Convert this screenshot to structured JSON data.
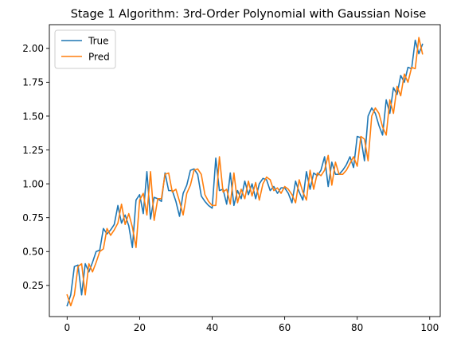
{
  "chart_data": {
    "type": "line",
    "title": "Stage 1 Algorithm: 3rd-Order Polynomial with Gaussian Noise",
    "xlabel": "",
    "ylabel": "",
    "xlim": [
      -4.9,
      102.9
    ],
    "ylim": [
      0.02,
      2.175
    ],
    "xticks": [
      0,
      20,
      40,
      60,
      80,
      100
    ],
    "yticks": [
      0.25,
      0.5,
      0.75,
      1.0,
      1.25,
      1.5,
      1.75,
      2.0
    ],
    "xtick_labels": [
      "0",
      "20",
      "40",
      "60",
      "80",
      "100"
    ],
    "ytick_labels": [
      "0.25",
      "0.50",
      "0.75",
      "1.00",
      "1.25",
      "1.50",
      "1.75",
      "2.00"
    ],
    "grid": false,
    "legend_position": "top-left",
    "x": [
      0,
      1,
      2,
      3,
      4,
      5,
      6,
      7,
      8,
      9,
      10,
      11,
      12,
      13,
      14,
      15,
      16,
      17,
      18,
      19,
      20,
      21,
      22,
      23,
      24,
      25,
      26,
      27,
      28,
      29,
      30,
      31,
      32,
      33,
      34,
      35,
      36,
      37,
      38,
      39,
      40,
      41,
      42,
      43,
      44,
      45,
      46,
      47,
      48,
      49,
      50,
      51,
      52,
      53,
      54,
      55,
      56,
      57,
      58,
      59,
      60,
      61,
      62,
      63,
      64,
      65,
      66,
      67,
      68,
      69,
      70,
      71,
      72,
      73,
      74,
      75,
      76,
      77,
      78,
      79,
      80,
      81,
      82,
      83,
      84,
      85,
      86,
      87,
      88,
      89,
      90,
      91,
      92,
      93,
      94,
      95,
      96,
      97,
      98
    ],
    "series": [
      {
        "name": "True",
        "color": "#1f77b4",
        "values": [
          0.1,
          0.18,
          0.39,
          0.4,
          0.18,
          0.41,
          0.35,
          0.42,
          0.5,
          0.51,
          0.67,
          0.63,
          0.66,
          0.7,
          0.84,
          0.71,
          0.77,
          0.69,
          0.53,
          0.88,
          0.92,
          0.78,
          1.09,
          0.74,
          0.9,
          0.89,
          0.87,
          1.08,
          0.95,
          0.95,
          0.87,
          0.76,
          0.93,
          0.99,
          1.1,
          1.11,
          1.07,
          0.91,
          0.87,
          0.84,
          0.82,
          1.19,
          0.95,
          0.96,
          0.85,
          1.08,
          0.84,
          0.95,
          0.89,
          1.02,
          0.92,
          1.0,
          0.89,
          1.0,
          1.04,
          1.03,
          0.95,
          0.98,
          0.93,
          0.97,
          0.97,
          0.93,
          0.86,
          1.02,
          0.94,
          0.88,
          1.09,
          0.96,
          1.08,
          1.06,
          1.1,
          1.2,
          0.98,
          1.16,
          1.07,
          1.07,
          1.1,
          1.14,
          1.2,
          1.12,
          1.35,
          1.34,
          1.17,
          1.5,
          1.56,
          1.52,
          1.43,
          1.36,
          1.62,
          1.52,
          1.71,
          1.66,
          1.8,
          1.75,
          1.86,
          1.85,
          2.06,
          1.96,
          2.03
        ]
      },
      {
        "name": "Pred",
        "color": "#ff7f0e",
        "values": [
          0.18,
          0.1,
          0.18,
          0.39,
          0.41,
          0.18,
          0.41,
          0.35,
          0.42,
          0.5,
          0.52,
          0.67,
          0.62,
          0.66,
          0.71,
          0.85,
          0.7,
          0.78,
          0.68,
          0.53,
          0.88,
          0.93,
          0.77,
          1.09,
          0.73,
          0.89,
          0.89,
          1.07,
          1.08,
          0.94,
          0.96,
          0.87,
          0.77,
          0.93,
          0.99,
          1.1,
          1.11,
          1.07,
          0.92,
          0.87,
          0.84,
          0.84,
          1.2,
          0.94,
          0.96,
          0.85,
          1.08,
          0.86,
          0.96,
          0.89,
          1.02,
          0.91,
          1.01,
          0.88,
          1.0,
          1.05,
          1.03,
          0.95,
          0.97,
          0.93,
          0.98,
          0.96,
          0.92,
          0.86,
          1.03,
          0.94,
          0.88,
          1.1,
          0.96,
          1.08,
          1.06,
          1.1,
          1.21,
          0.99,
          1.16,
          1.07,
          1.07,
          1.1,
          1.15,
          1.2,
          1.13,
          1.35,
          1.33,
          1.17,
          1.5,
          1.56,
          1.52,
          1.42,
          1.36,
          1.62,
          1.52,
          1.72,
          1.65,
          1.81,
          1.75,
          1.86,
          1.85,
          2.08,
          1.96
        ]
      }
    ]
  }
}
